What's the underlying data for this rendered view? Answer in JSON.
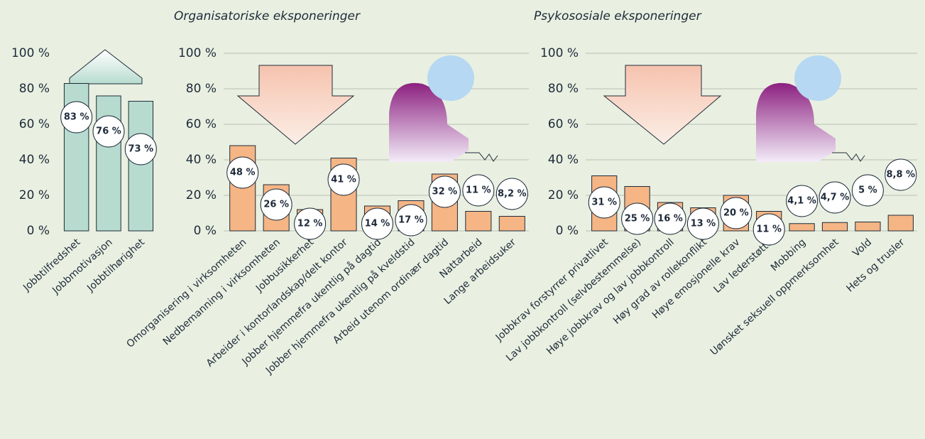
{
  "chart_data": [
    {
      "type": "bar",
      "categories": [
        "Jobbtilfredshet",
        "Jobbmotivasjon",
        "Jobbtilhørighet"
      ],
      "values": [
        83,
        76,
        73
      ],
      "value_labels": [
        "83 %",
        "76 %",
        "73 %"
      ],
      "color": "#b7dccf",
      "ylim": [
        0,
        100
      ],
      "yticks": [
        {
          "value": 0,
          "label": "0 %"
        },
        {
          "value": 20,
          "label": "20 %"
        },
        {
          "value": 40,
          "label": "40 %"
        },
        {
          "value": 60,
          "label": "60 %"
        },
        {
          "value": 80,
          "label": "80 %"
        },
        {
          "value": 100,
          "label": "100 %"
        }
      ],
      "grid": false
    },
    {
      "type": "bar",
      "title": "Organisatoriske eksponeringer",
      "categories": [
        "Omorganisering i virksomheten",
        "Nedbemanning i virksomheten",
        "Jobbusikkerhet",
        "Arbeider i kontorlandskap/delt kontor",
        "Jobber hjemmefra ukentlig på dagtid",
        "Jobber hjemmefra ukentlig på kveldstid",
        "Arbeid utenom ordinær dagtid",
        "Nattarbeid",
        "Lange arbeidsuker"
      ],
      "values": [
        48,
        26,
        12,
        41,
        14,
        17,
        32,
        11,
        8.2
      ],
      "value_labels": [
        "48 %",
        "26 %",
        "12 %",
        "41 %",
        "14 %",
        "17 %",
        "32 %",
        "11 %",
        "8,2 %"
      ],
      "color": "#f5b585",
      "ylim": [
        0,
        100
      ],
      "yticks": [
        {
          "value": 0,
          "label": "0 %"
        },
        {
          "value": 20,
          "label": "20 %"
        },
        {
          "value": 40,
          "label": "40 %"
        },
        {
          "value": 60,
          "label": "60 %"
        },
        {
          "value": 80,
          "label": "80 %"
        },
        {
          "value": 100,
          "label": "100 %"
        }
      ],
      "grid": true
    },
    {
      "type": "bar",
      "title": "Psykososiale eksponeringer",
      "categories": [
        "Jobbkrav forstyrrer privatlivet",
        "Lav jobbkontroll (selvbestemmelse)",
        "Høye jobbkrav og lav jobbkontroll",
        "Høy grad av rollekonflikt",
        "Høye emosjonelle krav",
        "Lav lederstøtte",
        "Mobbing",
        "Uønsket seksuell oppmerksomhet",
        "Vold",
        "Hets og trusler"
      ],
      "values": [
        31,
        25,
        16,
        13,
        20,
        11,
        4.1,
        4.7,
        5,
        8.8
      ],
      "value_labels": [
        "31 %",
        "25 %",
        "16 %",
        "13 %",
        "20 %",
        "11 %",
        "4,1 %",
        "4,7 %",
        "5 %",
        "8,8 %"
      ],
      "color": "#f5b585",
      "ylim": [
        0,
        100
      ],
      "yticks": [
        {
          "value": 0,
          "label": "0 %"
        },
        {
          "value": 20,
          "label": "20 %"
        },
        {
          "value": 40,
          "label": "40 %"
        },
        {
          "value": 60,
          "label": "60 %"
        },
        {
          "value": 80,
          "label": "80 %"
        },
        {
          "value": 100,
          "label": "100 %"
        }
      ],
      "grid": true
    }
  ]
}
